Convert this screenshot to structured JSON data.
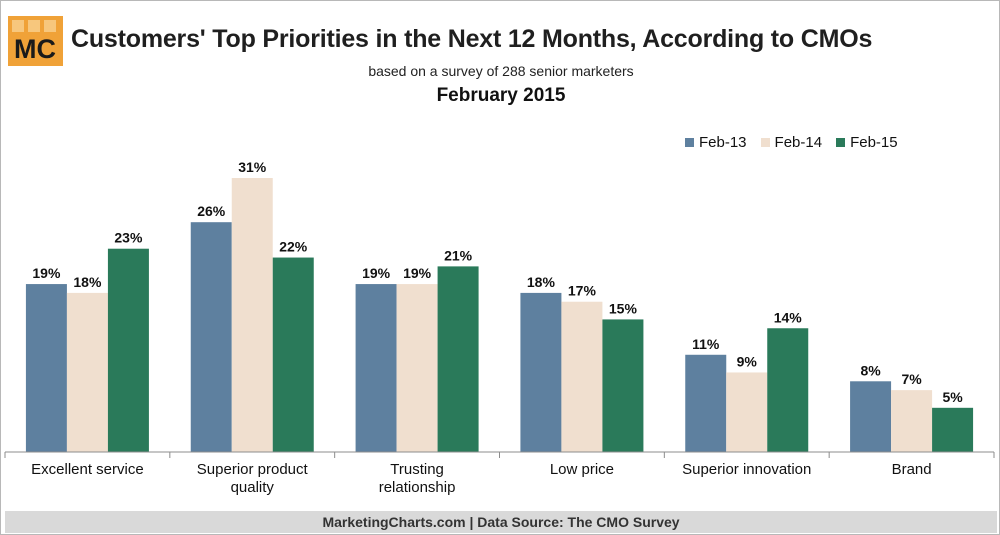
{
  "logo_text": "MC",
  "colors": {
    "Feb-13": "#5e809f",
    "Feb-14": "#f0dfcf",
    "Feb-15": "#2a7a5a",
    "logo_bg": "#f0a238"
  },
  "footer": "MarketingCharts.com | Data Source: The CMO Survey",
  "chart_data": {
    "type": "bar",
    "title": "Customers' Top Priorities in the Next 12 Months, According to CMOs",
    "subtitle": "based on a survey of 288 senior marketers",
    "date": "February 2015",
    "categories": [
      "Excellent service",
      "Superior product quality",
      "Trusting relationship",
      "Low price",
      "Superior innovation",
      "Brand"
    ],
    "series": [
      {
        "name": "Feb-13",
        "values": [
          19,
          26,
          19,
          18,
          11,
          8
        ],
        "labels": [
          "19%",
          "26%",
          "19%",
          "18%",
          "11%",
          "8%"
        ]
      },
      {
        "name": "Feb-14",
        "values": [
          18,
          31,
          19,
          17,
          9,
          7
        ],
        "labels": [
          "18%",
          "31%",
          "19%",
          "17%",
          "9%",
          "7%"
        ]
      },
      {
        "name": "Feb-15",
        "values": [
          23,
          22,
          21,
          15,
          14,
          5
        ],
        "labels": [
          "23%",
          "22%",
          "21%",
          "15%",
          "14%",
          "5%"
        ]
      }
    ],
    "ylim": [
      0,
      31
    ],
    "grid": false,
    "legend_position": "top-right"
  }
}
